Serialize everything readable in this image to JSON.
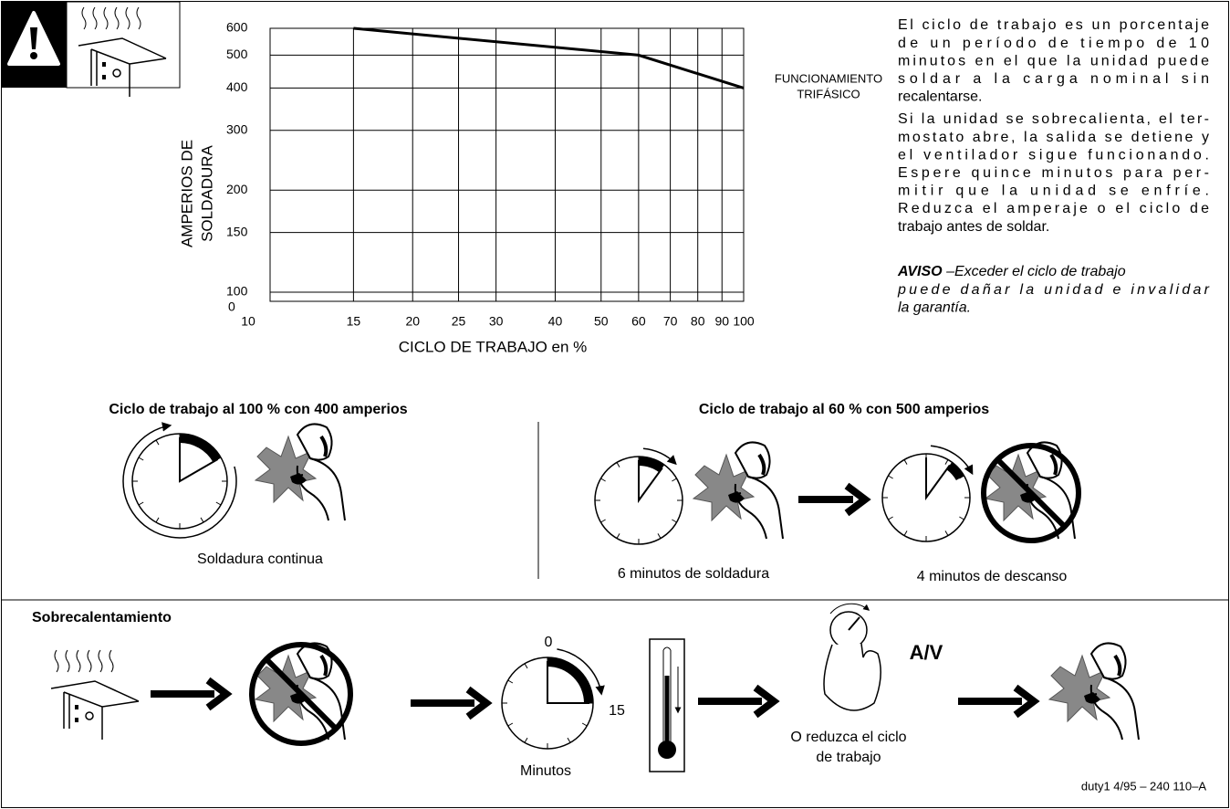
{
  "chart_data": {
    "type": "line",
    "x_label": "CICLO DE TRABAJO en %",
    "y_label": [
      "AMPERIOS DE",
      "SOLDADURA"
    ],
    "annotation": [
      "FUNCIONAMIENTO",
      "TRIFÁSICO"
    ],
    "y_origin_label": "0",
    "x_log": true,
    "y_log": true,
    "grid": true,
    "xlim": [
      10,
      100
    ],
    "ylim": [
      94,
      600
    ],
    "xticks": [
      10,
      15,
      20,
      25,
      30,
      40,
      50,
      60,
      70,
      80,
      90,
      100
    ],
    "yticks": [
      100,
      150,
      200,
      300,
      400,
      500,
      600
    ],
    "x": [
      15,
      60,
      100
    ],
    "values": [
      600,
      500,
      400
    ],
    "color": "#000000"
  },
  "description": {
    "paragraph_1": [
      "El ciclo de trabajo es un porcentaje",
      "de un período de tiempo de 10",
      "minutos en el que la unidad puede",
      "soldar a la carga nominal sin",
      "recalentarse."
    ],
    "paragraph_2": [
      "Si la unidad se sobrecalienta, el ter-",
      "mostato abre, la salida se detiene y",
      "el ventilador sigue funcionando.",
      "Espere quince minutos para per-",
      "mitir que la unidad se enfríe.",
      "Reduzca el amperaje o el ciclo de",
      "trabajo antes de soldar."
    ],
    "notice": {
      "label": "AVISO",
      "text": [
        "–Exceder el ciclo de trabajo",
        "puede dañar la unidad e invalidar",
        "la garantía."
      ]
    }
  },
  "duty_cycle": {
    "full": {
      "title": "Ciclo de trabajo al 100 % con 400 amperios",
      "caption": "Soldadura continua"
    },
    "partial": {
      "title": "Ciclo de trabajo al 60 % con 500 amperios",
      "caption_on": "6 minutos de soldadura",
      "caption_off": "4 minutos de descanso"
    }
  },
  "overheating": {
    "title": "Sobrecalentamiento",
    "timer_start": "0",
    "timer_end": "15",
    "timer_label": "Minutos",
    "adjust_label": "A/V",
    "reduce": [
      "O reduzca el ciclo",
      "de trabajo"
    ]
  },
  "footer": "duty1 4/95 – 240 110–A"
}
